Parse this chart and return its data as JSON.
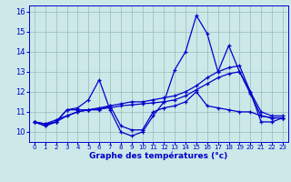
{
  "xlabel": "Graphe des températures (°c)",
  "bg_color": "#cce8e8",
  "line_color": "#0000cc",
  "grid_color": "#99bbbb",
  "xlim": [
    -0.5,
    23.5
  ],
  "ylim": [
    9.5,
    16.3
  ],
  "yticks": [
    10,
    11,
    12,
    13,
    14,
    15,
    16
  ],
  "xticks": [
    0,
    1,
    2,
    3,
    4,
    5,
    6,
    7,
    8,
    9,
    10,
    11,
    12,
    13,
    14,
    15,
    16,
    17,
    18,
    19,
    20,
    21,
    22,
    23
  ],
  "lines": [
    {
      "x": [
        0,
        1,
        2,
        3,
        4,
        5,
        6,
        7,
        8,
        9,
        10,
        11,
        12,
        13,
        14,
        15,
        16,
        17,
        18,
        19,
        20,
        21,
        22,
        23
      ],
      "y": [
        10.5,
        10.3,
        10.5,
        11.1,
        11.2,
        11.6,
        12.6,
        11.1,
        10.0,
        9.8,
        10.0,
        10.8,
        11.5,
        13.1,
        14.0,
        15.8,
        14.9,
        13.0,
        14.3,
        13.0,
        12.0,
        10.5,
        10.5,
        10.7
      ]
    },
    {
      "x": [
        0,
        1,
        2,
        3,
        4,
        5,
        6,
        7,
        8,
        9,
        10,
        11,
        12,
        13,
        14,
        15,
        16,
        17,
        18,
        19,
        20,
        21,
        22,
        23
      ],
      "y": [
        10.5,
        10.3,
        10.5,
        11.1,
        11.1,
        11.1,
        11.1,
        11.3,
        10.3,
        10.1,
        10.1,
        11.0,
        11.2,
        11.3,
        11.5,
        12.0,
        11.3,
        11.2,
        11.1,
        11.0,
        11.0,
        10.8,
        10.7,
        10.7
      ]
    },
    {
      "x": [
        0,
        1,
        2,
        3,
        4,
        5,
        6,
        7,
        8,
        9,
        10,
        11,
        12,
        13,
        14,
        15,
        16,
        17,
        18,
        19,
        20,
        21,
        22,
        23
      ],
      "y": [
        10.5,
        10.4,
        10.5,
        10.8,
        11.0,
        11.1,
        11.15,
        11.2,
        11.3,
        11.35,
        11.4,
        11.45,
        11.5,
        11.6,
        11.8,
        12.1,
        12.4,
        12.7,
        12.9,
        13.0,
        11.9,
        10.8,
        10.7,
        10.7
      ]
    },
    {
      "x": [
        0,
        1,
        2,
        3,
        4,
        5,
        6,
        7,
        8,
        9,
        10,
        11,
        12,
        13,
        14,
        15,
        16,
        17,
        18,
        19,
        20,
        21,
        22,
        23
      ],
      "y": [
        10.5,
        10.4,
        10.6,
        10.8,
        11.0,
        11.1,
        11.2,
        11.3,
        11.4,
        11.5,
        11.5,
        11.6,
        11.7,
        11.8,
        12.0,
        12.3,
        12.7,
        13.0,
        13.2,
        13.3,
        12.0,
        11.0,
        10.8,
        10.8
      ]
    }
  ]
}
